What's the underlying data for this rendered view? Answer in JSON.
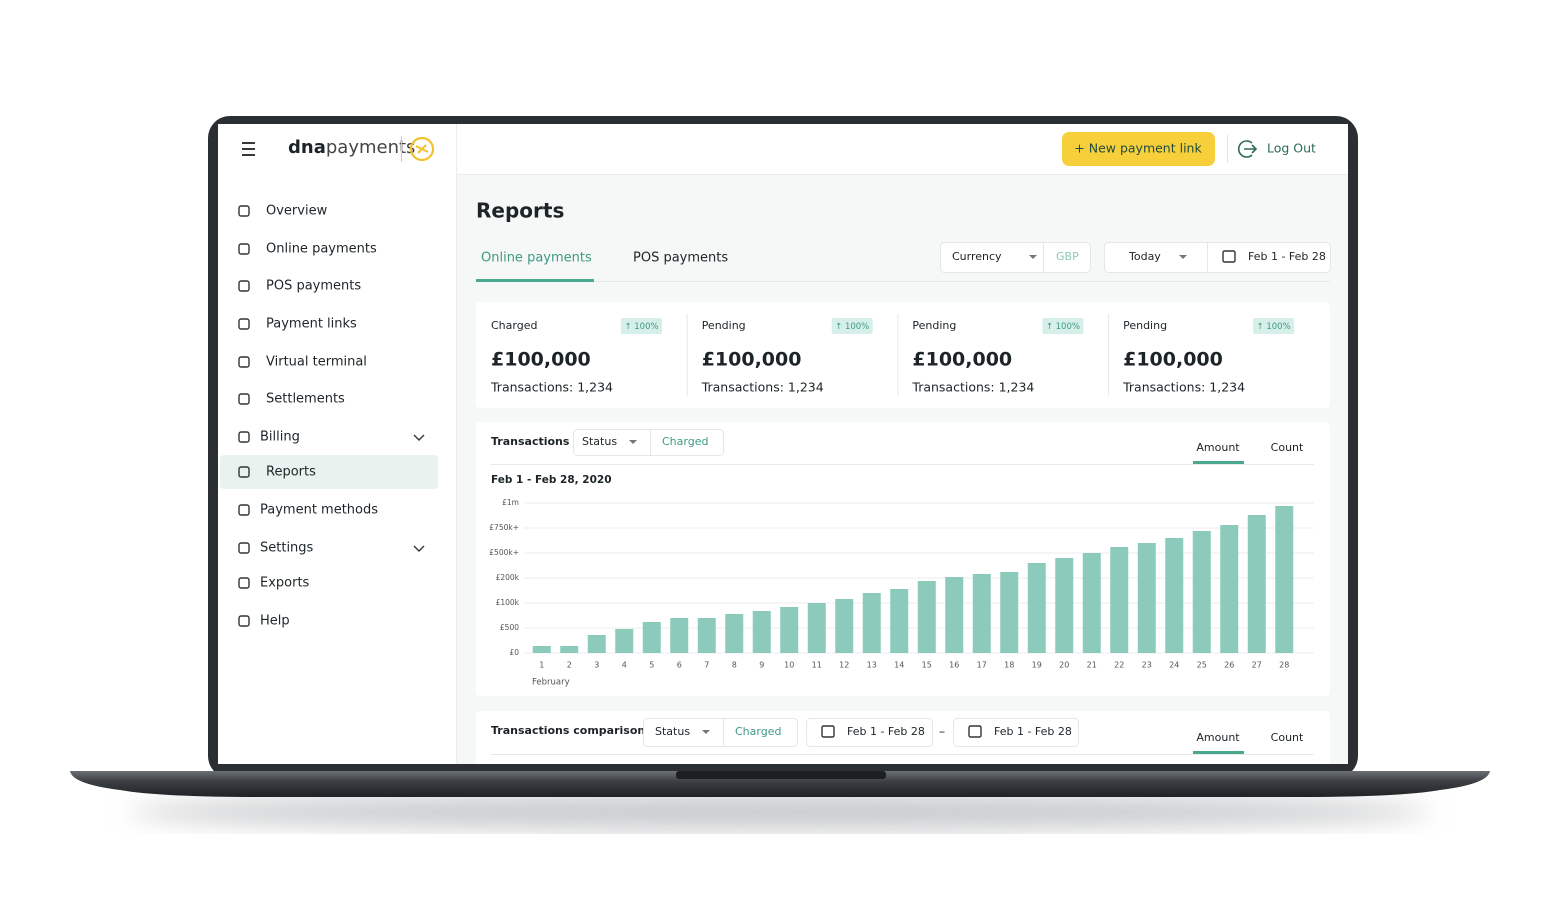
{
  "header": {
    "logo_bold": "dna",
    "logo_rest": "payments",
    "new_link": "+ New payment link",
    "logout": "Log Out"
  },
  "sidebar": {
    "items": [
      "Overview",
      "Online payments",
      "POS payments",
      "Payment links",
      "Virtual terminal",
      "Settlements",
      "Billing",
      "Reports",
      "Payment methods",
      "Settings",
      "Exports",
      "Help"
    ]
  },
  "page_title": "Reports",
  "tabs": [
    "Online payments",
    "POS payments"
  ],
  "filters": {
    "currency_label": "Currency",
    "currency": "GBP",
    "period": "Today",
    "range": "Feb 1 - Feb 28"
  },
  "summary_cards": [
    {
      "label": "Charged",
      "badge": "↑ 100%",
      "amount": "£100,000",
      "transactions": "Transactions: 1,234"
    },
    {
      "label": "Pending",
      "badge": "↑ 100%",
      "amount": "£100,000",
      "transactions": "Transactions: 1,234"
    },
    {
      "label": "Pending",
      "badge": "↑ 100%",
      "amount": "£100,000",
      "transactions": "Transactions: 1,234"
    },
    {
      "label": "Pending",
      "badge": "↑ 100%",
      "amount": "£100,000",
      "transactions": "Transactions: 1,234"
    }
  ],
  "transactions_panel": {
    "title": "Transactions",
    "status": "Status",
    "status_value": "Charged",
    "toggles": [
      "Amount",
      "Count"
    ]
  },
  "chart_data": {
    "type": "bar",
    "subtitle": "Feb 1 - Feb 28, 2020",
    "x_label": "February",
    "categories": [
      "1",
      "2",
      "3",
      "4",
      "5",
      "6",
      "7",
      "8",
      "9",
      "10",
      "11",
      "12",
      "13",
      "14",
      "15",
      "16",
      "17",
      "18",
      "19",
      "20",
      "21",
      "22",
      "23",
      "24",
      "25",
      "26",
      "27",
      "28"
    ],
    "values": [
      0.28,
      0.28,
      0.72,
      0.96,
      1.24,
      1.4,
      1.4,
      1.56,
      1.68,
      1.84,
      2.0,
      2.16,
      2.4,
      2.56,
      2.88,
      3.04,
      3.16,
      3.24,
      3.6,
      3.8,
      4.0,
      4.24,
      4.4,
      4.6,
      4.88,
      5.12,
      5.52,
      5.88
    ],
    "color": "#8ccabb",
    "ylim": [
      0,
      6
    ],
    "yticks": [
      {
        "value": 0,
        "label": "£0"
      },
      {
        "value": 1,
        "label": "£500"
      },
      {
        "value": 2,
        "label": "£100k"
      },
      {
        "value": 3,
        "label": "£200k"
      },
      {
        "value": 4,
        "label": "£500k+"
      },
      {
        "value": 5,
        "label": "£750k+"
      },
      {
        "value": 6,
        "label": "£1m"
      }
    ],
    "grid": true
  },
  "comparison_panel": {
    "title": "Transactions comparison",
    "status": "Status",
    "status_value": "Charged",
    "range_a": "Feb 1 - Feb 28",
    "separator": "–",
    "range_b": "Feb 1 - Feb 28",
    "toggles": [
      "Amount",
      "Count"
    ]
  }
}
